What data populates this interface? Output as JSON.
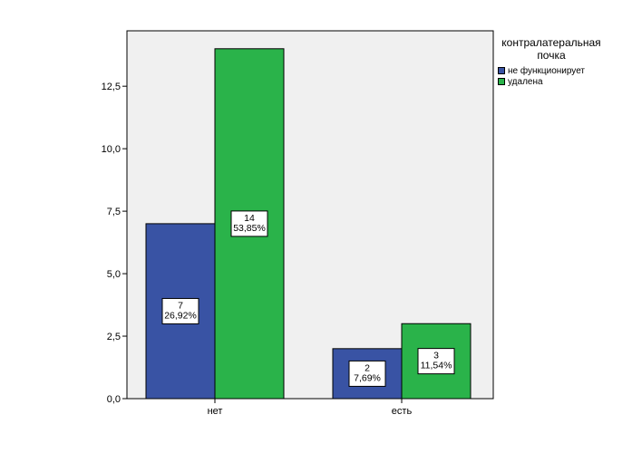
{
  "chart_data": {
    "type": "bar",
    "categories": [
      "нет",
      "есть"
    ],
    "series": [
      {
        "name": "не функционирует",
        "color": "#3953a4",
        "values": [
          7,
          2
        ],
        "labels": [
          "7\n26,92%",
          "2\n7,69%"
        ]
      },
      {
        "name": "удалена",
        "color": "#2ab34a",
        "values": [
          14,
          3
        ],
        "labels": [
          "14\n53,85%",
          "3\n11,54%"
        ]
      }
    ],
    "ylim": [
      0,
      15
    ],
    "yticks": [
      "0,0",
      "2,5",
      "5,0",
      "7,5",
      "10,0",
      "12,5"
    ],
    "legend": {
      "title": "контралатеральная почка",
      "position": "right"
    },
    "plot_background": "#f0f0f0"
  }
}
